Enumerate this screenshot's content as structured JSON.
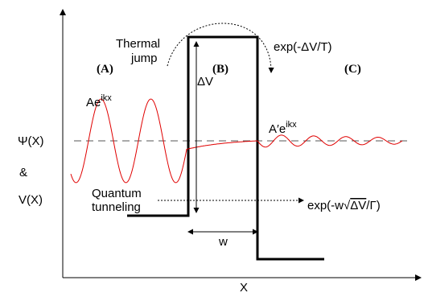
{
  "diagram": {
    "y_label_psi": "Ψ(X)",
    "y_label_amp": "&",
    "y_label_v": "V(X)",
    "x_label": "X",
    "region_a": "(A)",
    "region_b": "(B)",
    "region_c": "(C)",
    "thermal_line1": "Thermal",
    "thermal_line2": "jump",
    "thermal_rate": "exp(-ΔV/T)",
    "delta_v": "ΔV",
    "incoming_wave_base": "Ae",
    "incoming_wave_exp": "ikx",
    "transmitted_wave_base": "A′e",
    "transmitted_wave_exp": "ikx",
    "quantum_line1": "Quantum",
    "quantum_line2": "tunneling",
    "tunnel_rate_prefix": "exp(-w",
    "tunnel_rate_radicand": "ΔV",
    "tunnel_rate_suffix": "/Γ)",
    "width": "w",
    "colors": {
      "wave": "#e00000",
      "potential": "#000000",
      "dashed": "#555555"
    }
  }
}
